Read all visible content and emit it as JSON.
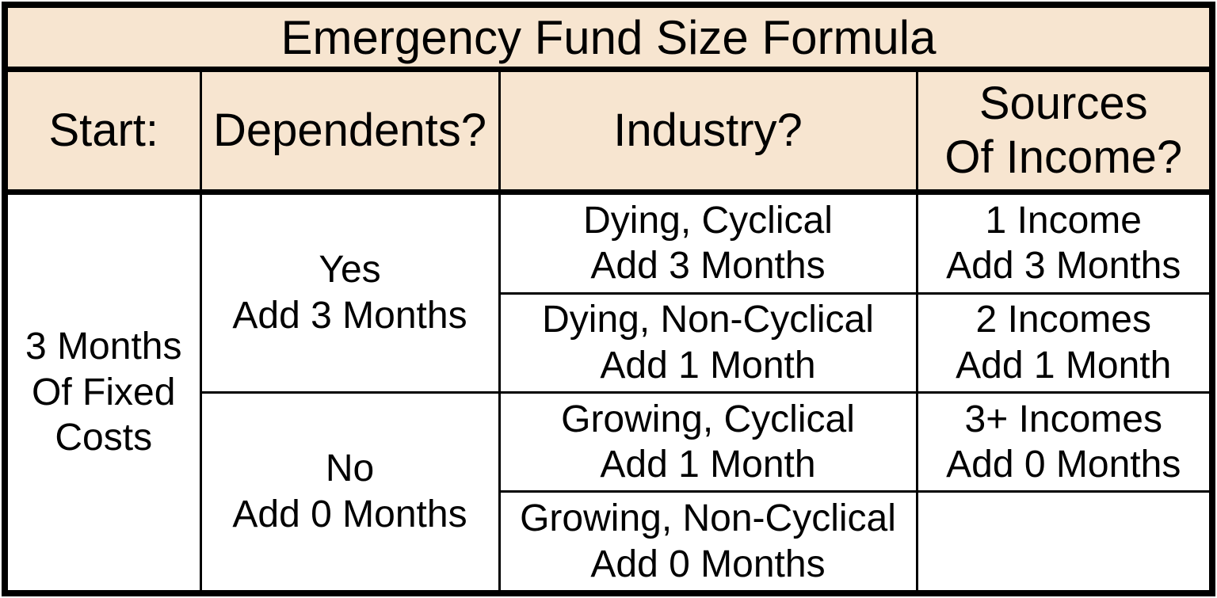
{
  "title": "Emergency Fund Size Formula",
  "header": {
    "start": "Start:",
    "dependents": "Dependents?",
    "industry": "Industry?",
    "income": [
      "Sources",
      "Of Income?"
    ]
  },
  "body": {
    "start": [
      "3 Months",
      "Of Fixed",
      "Costs"
    ],
    "dependents": {
      "yes": [
        "Yes",
        "Add 3 Months"
      ],
      "no": [
        "No",
        "Add 0 Months"
      ]
    },
    "industry": [
      [
        "Dying, Cyclical",
        "Add 3 Months"
      ],
      [
        "Dying, Non-Cyclical",
        "Add 1 Month"
      ],
      [
        "Growing, Cyclical",
        "Add 1 Month"
      ],
      [
        "Growing, Non-Cyclical",
        "Add 0 Months"
      ]
    ],
    "income": [
      [
        "1 Income",
        "Add 3 Months"
      ],
      [
        "2 Incomes",
        "Add 1 Month"
      ],
      [
        "3+ Incomes",
        "Add 0 Months"
      ],
      [
        "",
        ""
      ]
    ]
  },
  "colors": {
    "header_bg": "#f7e5d0",
    "body_bg": "#ffffff",
    "border": "#000000",
    "text": "#000000"
  },
  "chart_data": {
    "type": "table",
    "title": "Emergency Fund Size Formula",
    "columns": [
      "Start:",
      "Dependents?",
      "Industry?",
      "Sources Of Income?"
    ],
    "rows": [
      [
        "3 Months Of Fixed Costs",
        "Yes Add 3 Months",
        "Dying, Cyclical Add 3 Months",
        "1 Income Add 3 Months"
      ],
      [
        "3 Months Of Fixed Costs",
        "Yes Add 3 Months",
        "Dying, Non-Cyclical Add 1 Month",
        "2 Incomes Add 1 Month"
      ],
      [
        "3 Months Of Fixed Costs",
        "No Add 0 Months",
        "Growing, Cyclical Add 1 Month",
        "3+ Incomes Add 0 Months"
      ],
      [
        "3 Months Of Fixed Costs",
        "No Add 0 Months",
        "Growing, Non-Cyclical Add 0 Months",
        ""
      ]
    ],
    "merges": [
      {
        "column": "Start:",
        "value": "3 Months Of Fixed Costs",
        "rowspan": 4
      },
      {
        "column": "Dependents?",
        "value": "Yes Add 3 Months",
        "rowspan": 2
      },
      {
        "column": "Dependents?",
        "value": "No Add 0 Months",
        "rowspan": 2
      }
    ],
    "legend_position": "none",
    "grid": true
  }
}
